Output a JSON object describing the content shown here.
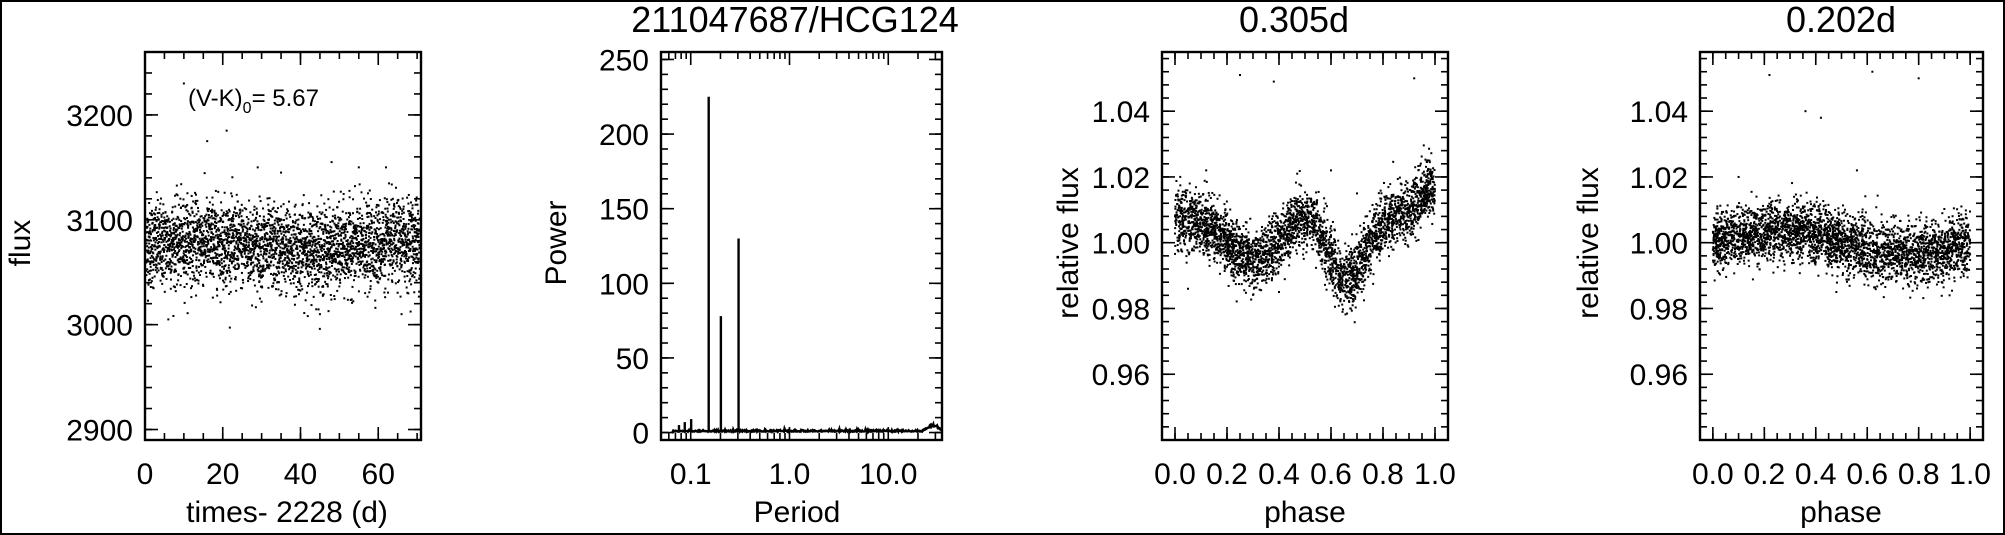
{
  "figure": {
    "title": "211047687/HCG124"
  },
  "chart_data": [
    {
      "type": "scatter",
      "title": "",
      "xlabel": "times- 2228 (d)",
      "ylabel": "flux",
      "xlim": [
        0,
        71
      ],
      "ylim": [
        2890,
        3260
      ],
      "xticks": [
        0,
        20,
        40,
        60
      ],
      "xtick_labels": [
        "0",
        "20",
        "40",
        "60"
      ],
      "yticks": [
        2900,
        3000,
        3100,
        3200
      ],
      "ytick_labels": [
        "2900",
        "3000",
        "3100",
        "3200"
      ],
      "annotation": {
        "prefix": "(V-K)",
        "sub": "0",
        "suffix": "= 5.67"
      },
      "points_summary": {
        "mean": 3075,
        "spread": 20,
        "count": 3400
      },
      "outliers": [
        [
          10,
          3230
        ],
        [
          16,
          3175
        ],
        [
          21,
          3185
        ],
        [
          29,
          3150
        ],
        [
          35,
          3145
        ],
        [
          48,
          3155
        ],
        [
          55,
          3150
        ],
        [
          6,
          3005
        ],
        [
          45,
          3010
        ],
        [
          66,
          3010
        ],
        [
          62,
          3150
        ]
      ]
    },
    {
      "type": "line",
      "title": "",
      "xlabel": "Period",
      "ylabel": "Power",
      "xscale": "log",
      "xlim": [
        0.05,
        35
      ],
      "ylim": [
        -5,
        255
      ],
      "xticks": [
        0.1,
        1.0,
        10.0
      ],
      "xtick_labels": [
        "0.1",
        "1.0",
        "10.0"
      ],
      "yticks": [
        0,
        50,
        100,
        150,
        200,
        250
      ],
      "ytick_labels": [
        "0",
        "50",
        "100",
        "150",
        "200",
        "250"
      ],
      "peaks": [
        {
          "period": 0.076,
          "power": 5
        },
        {
          "period": 0.087,
          "power": 7
        },
        {
          "period": 0.101,
          "power": 9
        },
        {
          "period": 0.152,
          "power": 225
        },
        {
          "period": 0.202,
          "power": 78
        },
        {
          "period": 0.305,
          "power": 130
        }
      ]
    },
    {
      "type": "scatter",
      "title": "0.305d",
      "xlabel": "phase",
      "ylabel": "relative flux",
      "xlim": [
        -0.05,
        1.05
      ],
      "ylim": [
        0.94,
        1.058
      ],
      "xticks": [
        0.0,
        0.2,
        0.4,
        0.6,
        0.8,
        1.0
      ],
      "xtick_labels": [
        "0.0",
        "0.2",
        "0.4",
        "0.6",
        "0.8",
        "1.0"
      ],
      "yticks": [
        0.96,
        0.98,
        1.0,
        1.02,
        1.04
      ],
      "ytick_labels": [
        "0.96",
        "0.98",
        "1.00",
        "1.02",
        "1.04"
      ],
      "points_summary": {
        "model": "eclipsing-like, minima near phase 0.3 and 0.65",
        "spread": 0.0045,
        "count": 3400
      },
      "outliers": [
        [
          0.25,
          1.051
        ],
        [
          0.38,
          1.049
        ],
        [
          0.47,
          1.021
        ],
        [
          0.6,
          1.022
        ],
        [
          0.92,
          1.05
        ],
        [
          0.12,
          1.022
        ],
        [
          0.7,
          1.015
        ],
        [
          0.05,
          0.986
        ],
        [
          0.4,
          0.985
        ]
      ]
    },
    {
      "type": "scatter",
      "title": "0.202d",
      "xlabel": "phase",
      "ylabel": "relative flux",
      "xlim": [
        -0.05,
        1.05
      ],
      "ylim": [
        0.94,
        1.058
      ],
      "xticks": [
        0.0,
        0.2,
        0.4,
        0.6,
        0.8,
        1.0
      ],
      "xtick_labels": [
        "0.0",
        "0.2",
        "0.4",
        "0.6",
        "0.8",
        "1.0"
      ],
      "yticks": [
        0.96,
        0.98,
        1.0,
        1.02,
        1.04
      ],
      "ytick_labels": [
        "0.96",
        "0.98",
        "1.00",
        "1.02",
        "1.04"
      ],
      "points_summary": {
        "model": "weak sinusoid, maximum near phase 0.25",
        "spread": 0.0045,
        "count": 3400
      },
      "outliers": [
        [
          0.22,
          1.051
        ],
        [
          0.36,
          1.04
        ],
        [
          0.42,
          1.038
        ],
        [
          0.62,
          1.052
        ],
        [
          0.8,
          1.05
        ],
        [
          0.56,
          1.022
        ],
        [
          0.1,
          1.02
        ],
        [
          0.48,
          0.985
        ],
        [
          0.92,
          0.984
        ]
      ]
    }
  ]
}
